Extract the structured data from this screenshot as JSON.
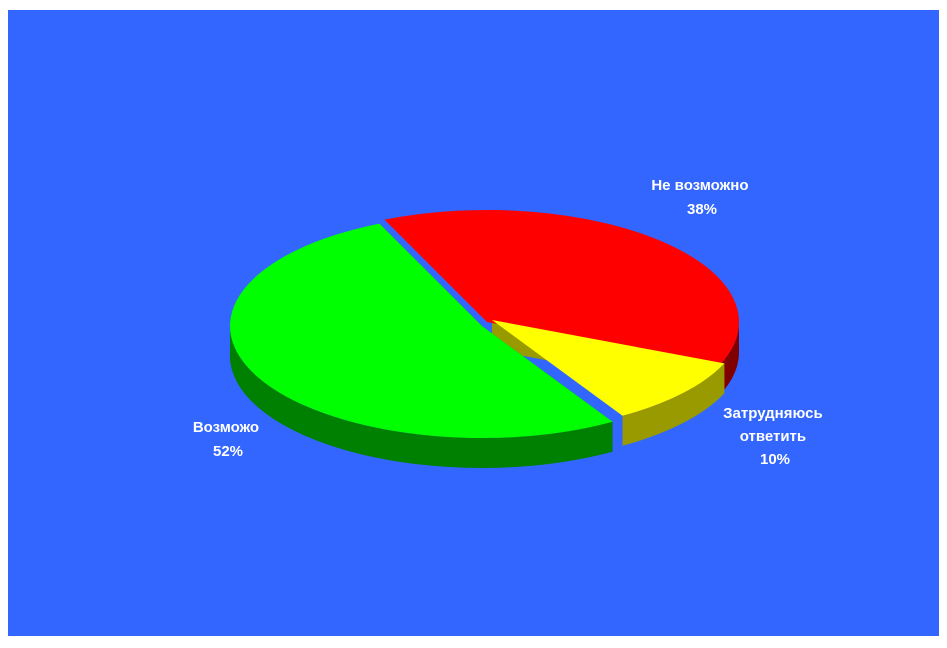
{
  "chart_data": {
    "type": "pie",
    "title": "",
    "slices": [
      {
        "category": "Не возможно",
        "value": 38,
        "percent_label": "38%",
        "color": "#ff0000",
        "side_color": "#800000"
      },
      {
        "category": "Затрудняюсь ответить",
        "label_lines": [
          "Затрудняюсь",
          "ответить"
        ],
        "value": 10,
        "percent_label": "10%",
        "color": "#ffff00",
        "side_color": "#999900"
      },
      {
        "category": "Возможо",
        "value": 52,
        "percent_label": "52%",
        "color": "#00ff00",
        "side_color": "#008000"
      }
    ],
    "background_color": "#3366ff",
    "style": "3d-exploded",
    "legend": "none"
  }
}
